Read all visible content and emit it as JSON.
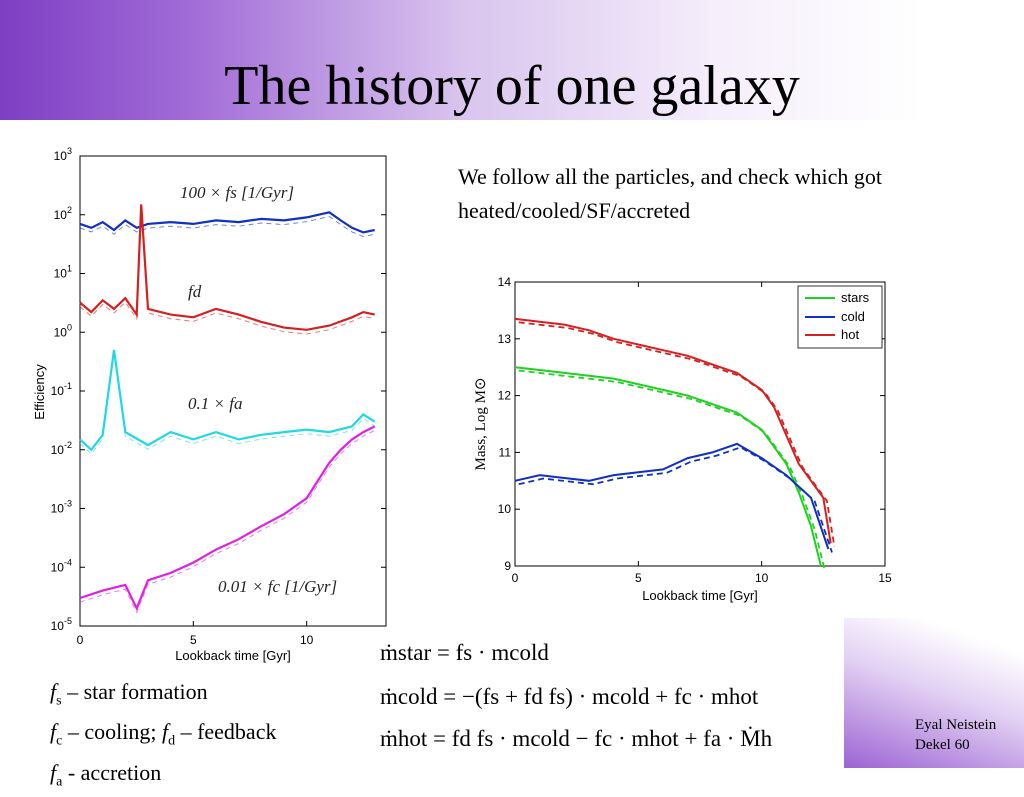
{
  "title": "The history of one galaxy",
  "description": "We follow all the particles, and check which got heated/cooled/SF/accreted",
  "legend_lines": [
    {
      "sym": "f",
      "sub": "s",
      "text": " – star formation"
    },
    {
      "sym": "f",
      "sub": "c",
      "text": " – cooling;  ",
      "sym2": "f",
      "sub2": "d",
      "text2": " – feedback"
    },
    {
      "sym": "f",
      "sub": "a",
      "text": " - accretion"
    }
  ],
  "equations": [
    "ṁstar = fs · mcold",
    "ṁcold = −(fs + fd fs) · mcold + fc · mhot",
    "ṁhot = fd fs · mcold − fc · mhot + fa · Ṁh"
  ],
  "credit": {
    "line1": "Eyal  Neistein",
    "line2": "Dekel 60"
  },
  "chart_data": [
    {
      "type": "line",
      "xlabel": "Lookback time [Gyr]",
      "ylabel": "Efficiency",
      "xlim": [
        0,
        13.5
      ],
      "ylim_log10": [
        -5,
        3
      ],
      "yscale": "log",
      "xticks": [
        "0",
        "5",
        "10"
      ],
      "yticks": [
        "10-5",
        "10-4",
        "10-3",
        "10-2",
        "10-1",
        "100",
        "101",
        "102",
        "103"
      ],
      "annotations": [
        "100 × fs [1/Gyr]",
        "fd",
        "0.1 × fa",
        "0.01 × fc [1/Gyr]"
      ],
      "colors": {
        "fs": "#1030c0",
        "fd": "#d42020",
        "fa": "#22d8e0",
        "fc": "#e020e0"
      },
      "series": [
        {
          "name": "100 × fs [1/Gyr]",
          "color": "#1030c0",
          "x": [
            0,
            0.5,
            1,
            1.5,
            2,
            2.5,
            3,
            4,
            5,
            6,
            7,
            8,
            9,
            10,
            11,
            11.5,
            12,
            12.5,
            13
          ],
          "values": [
            70,
            60,
            75,
            55,
            80,
            60,
            70,
            75,
            70,
            80,
            75,
            85,
            80,
            90,
            110,
            80,
            60,
            50,
            55
          ]
        },
        {
          "name": "fd",
          "color": "#d42020",
          "x": [
            0,
            0.5,
            1,
            1.5,
            2,
            2.5,
            2.7,
            3,
            4,
            5,
            6,
            7,
            8,
            9,
            10,
            11,
            12,
            12.5,
            13
          ],
          "values": [
            3.2,
            2.2,
            3.5,
            2.5,
            3.8,
            2.0,
            150,
            2.5,
            2.0,
            1.8,
            2.5,
            2.0,
            1.5,
            1.2,
            1.1,
            1.3,
            1.8,
            2.2,
            2.0
          ]
        },
        {
          "name": "0.1 × fa",
          "color": "#22d8e0",
          "x": [
            0,
            0.5,
            1,
            1.5,
            2,
            3,
            4,
            5,
            6,
            7,
            8,
            9,
            10,
            11,
            12,
            12.5,
            13
          ],
          "values": [
            0.015,
            0.01,
            0.018,
            0.5,
            0.02,
            0.012,
            0.02,
            0.015,
            0.02,
            0.015,
            0.018,
            0.02,
            0.022,
            0.02,
            0.025,
            0.04,
            0.03
          ]
        },
        {
          "name": "0.01 × fc [1/Gyr]",
          "color": "#e020e0",
          "x": [
            0,
            1,
            2,
            2.5,
            3,
            4,
            5,
            6,
            7,
            8,
            9,
            10,
            10.5,
            11,
            11.5,
            12,
            12.5,
            13
          ],
          "values": [
            3e-05,
            4e-05,
            5e-05,
            2e-05,
            6e-05,
            8e-05,
            0.00012,
            0.0002,
            0.0003,
            0.0005,
            0.0008,
            0.0015,
            0.003,
            0.006,
            0.01,
            0.015,
            0.02,
            0.025
          ]
        }
      ]
    },
    {
      "type": "line",
      "xlabel": "Lookback time [Gyr]",
      "ylabel": "Mass, Log M⊙",
      "xlim": [
        0,
        15
      ],
      "ylim": [
        9,
        14
      ],
      "xticks": [
        "0",
        "5",
        "10",
        "15"
      ],
      "yticks": [
        "9",
        "10",
        "11",
        "12",
        "13",
        "14"
      ],
      "legend_position": "top-right",
      "series": [
        {
          "name": "stars",
          "color": "#20d020",
          "x": [
            0,
            1,
            2,
            3,
            4,
            5,
            6,
            7,
            8,
            9,
            10,
            11,
            11.5,
            12,
            12.4
          ],
          "values": [
            12.5,
            12.45,
            12.4,
            12.35,
            12.3,
            12.2,
            12.1,
            12.0,
            11.85,
            11.7,
            11.4,
            10.8,
            10.3,
            9.7,
            9.0
          ]
        },
        {
          "name": "cold",
          "color": "#1030c0",
          "x": [
            0,
            1,
            2,
            3,
            4,
            5,
            6,
            7,
            8,
            9,
            10,
            11,
            12,
            12.7
          ],
          "values": [
            10.5,
            10.6,
            10.55,
            10.5,
            10.6,
            10.65,
            10.7,
            10.9,
            11.0,
            11.15,
            10.9,
            10.6,
            10.2,
            9.3
          ]
        },
        {
          "name": "hot",
          "color": "#d42020",
          "x": [
            0,
            1,
            2,
            3,
            4,
            5,
            6,
            7,
            8,
            9,
            10,
            10.5,
            11,
            11.5,
            12,
            12.5,
            12.8
          ],
          "values": [
            13.35,
            13.3,
            13.25,
            13.15,
            13.0,
            12.9,
            12.8,
            12.7,
            12.55,
            12.4,
            12.1,
            11.8,
            11.3,
            10.8,
            10.5,
            10.2,
            9.4
          ]
        }
      ]
    }
  ]
}
